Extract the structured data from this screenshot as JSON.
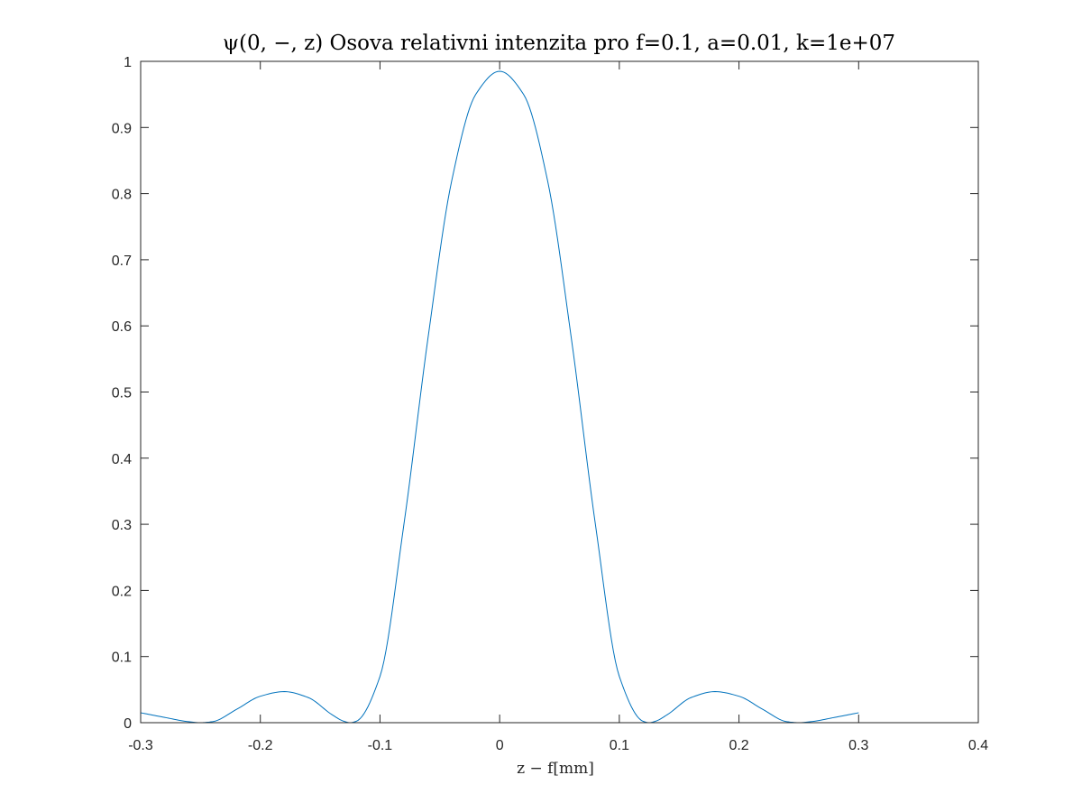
{
  "chart_data": {
    "type": "line",
    "title": "ψ(0, −, z) Osova relativni intenzita pro f=0.1, a=0.01, k=1e+07",
    "xlabel": "z − f[mm]",
    "ylabel": "",
    "xlim": [
      -0.3,
      0.4
    ],
    "ylim": [
      0,
      1
    ],
    "x_ticks": [
      "-0.3",
      "-0.2",
      "-0.1",
      "0",
      "0.1",
      "0.2",
      "0.3",
      "0.4"
    ],
    "y_ticks": [
      "0",
      "0.1",
      "0.2",
      "0.3",
      "0.4",
      "0.5",
      "0.6",
      "0.7",
      "0.8",
      "0.9",
      "1"
    ],
    "grid": false,
    "box": true,
    "series": [
      {
        "color": "#0072BD",
        "x": [
          -0.3,
          -0.28,
          -0.26,
          -0.25,
          -0.24,
          -0.22,
          -0.2,
          -0.18,
          -0.16,
          -0.14,
          -0.13,
          -0.125,
          -0.12,
          -0.1,
          -0.08,
          -0.06,
          -0.04,
          -0.02,
          0,
          0.02,
          0.04,
          0.06,
          0.08,
          0.1,
          0.12,
          0.125,
          0.13,
          0.14,
          0.16,
          0.18,
          0.2,
          0.22,
          0.24,
          0.25,
          0.26,
          0.28,
          0.3
        ],
        "y": [
          0.015,
          0.008,
          0.0015,
          0.0,
          0.0015,
          0.02,
          0.04,
          0.047,
          0.038,
          0.012,
          0.002,
          0.0,
          0.002,
          0.07,
          0.3,
          0.58,
          0.82,
          0.95,
          0.985,
          0.95,
          0.82,
          0.58,
          0.3,
          0.07,
          0.002,
          0.0,
          0.002,
          0.012,
          0.038,
          0.047,
          0.04,
          0.02,
          0.0015,
          0.0,
          0.0015,
          0.008,
          0.015
        ]
      },
      {
        "color": "#A2142F",
        "x": [
          -0.3,
          0.3
        ],
        "y": [
          0,
          0
        ]
      }
    ]
  }
}
